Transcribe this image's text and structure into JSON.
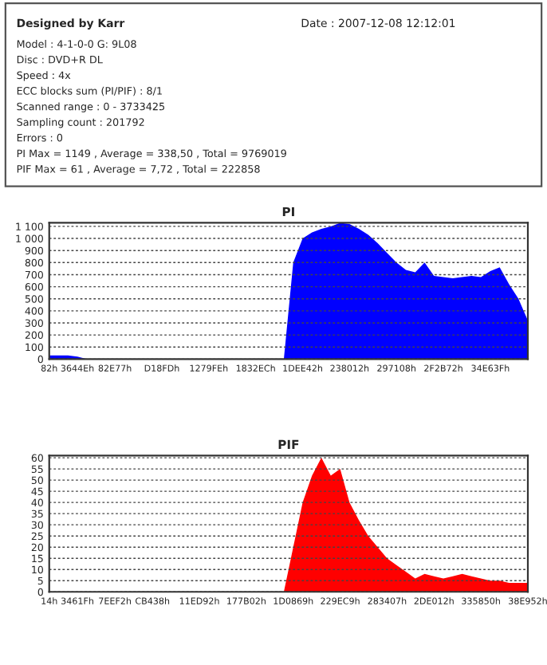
{
  "chart_data": [
    {
      "type": "area",
      "title": "PI",
      "annotations": [
        "Designed by Karr",
        "Date : 2007-12-08 12:12:01",
        "Model : 4-1-0-0 G: 9L08",
        "Disc : DVD+R DL",
        "Speed : 4x",
        "ECC blocks sum (PI/PIF) : 8/1",
        "Scanned range : 0 - 3733425",
        "Sampling count : 201792",
        "Errors : 0",
        "PI Max = 1149 , Average = 338,50 , Total = 9769019",
        "PIF Max = 61 , Average = 7,72 , Total = 222858"
      ],
      "categories": [
        "82h",
        null,
        null,
        "3644Eh",
        null,
        null,
        null,
        "82E77h",
        null,
        null,
        null,
        null,
        "D18FDh",
        null,
        null,
        null,
        null,
        "1279FEh",
        null,
        null,
        null,
        null,
        "1832ECh",
        null,
        null,
        null,
        null,
        "1DEE42h",
        null,
        null,
        null,
        null,
        "238012h",
        null,
        null,
        null,
        null,
        "297108h",
        null,
        null,
        null,
        null,
        "2F2B72h",
        null,
        null,
        null,
        null,
        "34E63Fh",
        null,
        null,
        null,
        null
      ],
      "series": [
        {
          "color": "#0000ff",
          "values": [
            30,
            30,
            30,
            20,
            0,
            0,
            0,
            0,
            0,
            0,
            0,
            0,
            0,
            0,
            0,
            0,
            0,
            0,
            0,
            0,
            0,
            0,
            0,
            0,
            0,
            0,
            800,
            1000,
            1050,
            1080,
            1100,
            1130,
            1120,
            1080,
            1030,
            960,
            880,
            800,
            740,
            720,
            800,
            690,
            680,
            670,
            680,
            690,
            680,
            730,
            760,
            620,
            500,
            320
          ]
        }
      ],
      "ylim": [
        0,
        1130
      ],
      "yticks": [
        0,
        100,
        200,
        300,
        400,
        500,
        600,
        700,
        800,
        900,
        {
          "value": 1000,
          "label": "1 000"
        },
        {
          "value": 1100,
          "label": "1 100"
        }
      ],
      "grid": "y"
    },
    {
      "type": "area",
      "title": "PIF",
      "categories": [
        "14h",
        null,
        null,
        "3461Fh",
        null,
        null,
        null,
        "7EEF2h",
        null,
        null,
        null,
        "CB438h",
        null,
        null,
        null,
        null,
        "11ED92h",
        null,
        null,
        null,
        null,
        "177B02h",
        null,
        null,
        null,
        null,
        "1D0869h",
        null,
        null,
        null,
        null,
        "229EC9h",
        null,
        null,
        null,
        null,
        "283407h",
        null,
        null,
        null,
        null,
        "2DE012h",
        null,
        null,
        null,
        null,
        "335850h",
        null,
        null,
        null,
        null,
        "38E952h"
      ],
      "series": [
        {
          "color": "#ff0000",
          "values": [
            0,
            0,
            0,
            0,
            0,
            0,
            0,
            0,
            0,
            0,
            0,
            0,
            0,
            0,
            0,
            0,
            0,
            0,
            0,
            0,
            0,
            0,
            0,
            0,
            0,
            0,
            20,
            40,
            52,
            60,
            52,
            55,
            40,
            32,
            25,
            20,
            15,
            12,
            9,
            6,
            8,
            7,
            6,
            7,
            8,
            7,
            6,
            5,
            5,
            4,
            4,
            4
          ]
        }
      ],
      "ylim": [
        0,
        61
      ],
      "yticks": [
        0,
        5,
        10,
        15,
        20,
        25,
        30,
        35,
        40,
        45,
        50,
        55,
        60
      ],
      "grid": "y"
    }
  ]
}
